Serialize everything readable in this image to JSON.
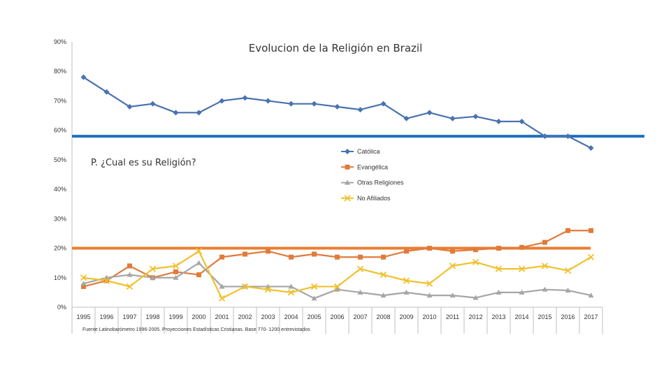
{
  "chart_data": {
    "type": "line",
    "title": "Evolucion de la Religión en Brazil",
    "annotation": "P. ¿Cual es su Religión?",
    "source": "Fuente Latinobarómetro 1996-2005. Proyecciones Estadísticas Cristianas. Base 770- 1200 entrevistados",
    "xlabel": "",
    "ylabel": "",
    "ylim": [
      0,
      90
    ],
    "y_ticks": [
      0,
      10,
      20,
      30,
      40,
      50,
      60,
      70,
      80,
      90
    ],
    "y_tick_labels": [
      "0%",
      "10%",
      "20%",
      "30%",
      "40%",
      "50%",
      "60%",
      "70%",
      "80%",
      "90%"
    ],
    "categories": [
      "1995",
      "1996",
      "1997",
      "1998",
      "1999",
      "2000",
      "2001",
      "2002",
      "2003",
      "2004",
      "2005",
      "2006",
      "2007",
      "2008",
      "2009",
      "2010",
      "2011",
      "2012",
      "2013",
      "2014",
      "2015",
      "2016",
      "2017"
    ],
    "legend_position": "center-right",
    "series": [
      {
        "name": "Católica",
        "color": "#4a72b0",
        "marker": "diamond",
        "values": [
          78,
          73,
          68,
          69,
          66,
          66,
          70,
          71,
          70,
          69,
          69,
          68,
          67,
          69,
          64,
          66,
          64,
          64.7,
          63,
          63,
          58,
          58,
          54
        ]
      },
      {
        "name": "Evangélica",
        "color": "#e07b3a",
        "marker": "square",
        "values": [
          7,
          9,
          14,
          10,
          12,
          11,
          17,
          18,
          19,
          17,
          18,
          17,
          17,
          17,
          19,
          20,
          19,
          19.5,
          20,
          20.3,
          22,
          26,
          26
        ]
      },
      {
        "name": "Otras Religiones",
        "color": "#a6a6a6",
        "marker": "triangle",
        "values": [
          8,
          10,
          11,
          10,
          10,
          15,
          7,
          7,
          7,
          7,
          3,
          6,
          5,
          4,
          5,
          4,
          4,
          3.2,
          5,
          5,
          6,
          5.7,
          4
        ]
      },
      {
        "name": "No Afiliados",
        "color": "#f0c12e",
        "marker": "x",
        "values": [
          10,
          9,
          7,
          13,
          14,
          19,
          3,
          7,
          6,
          5,
          7,
          7,
          13,
          11,
          9,
          8,
          14,
          15.3,
          13,
          13,
          14,
          12.4,
          17
        ]
      }
    ],
    "reference_lines": [
      {
        "name": "catolica-reference-line",
        "value": 58,
        "color": "#1f6fbf"
      },
      {
        "name": "evangelica-reference-line",
        "value": 20,
        "color": "#ed7d31"
      }
    ]
  }
}
